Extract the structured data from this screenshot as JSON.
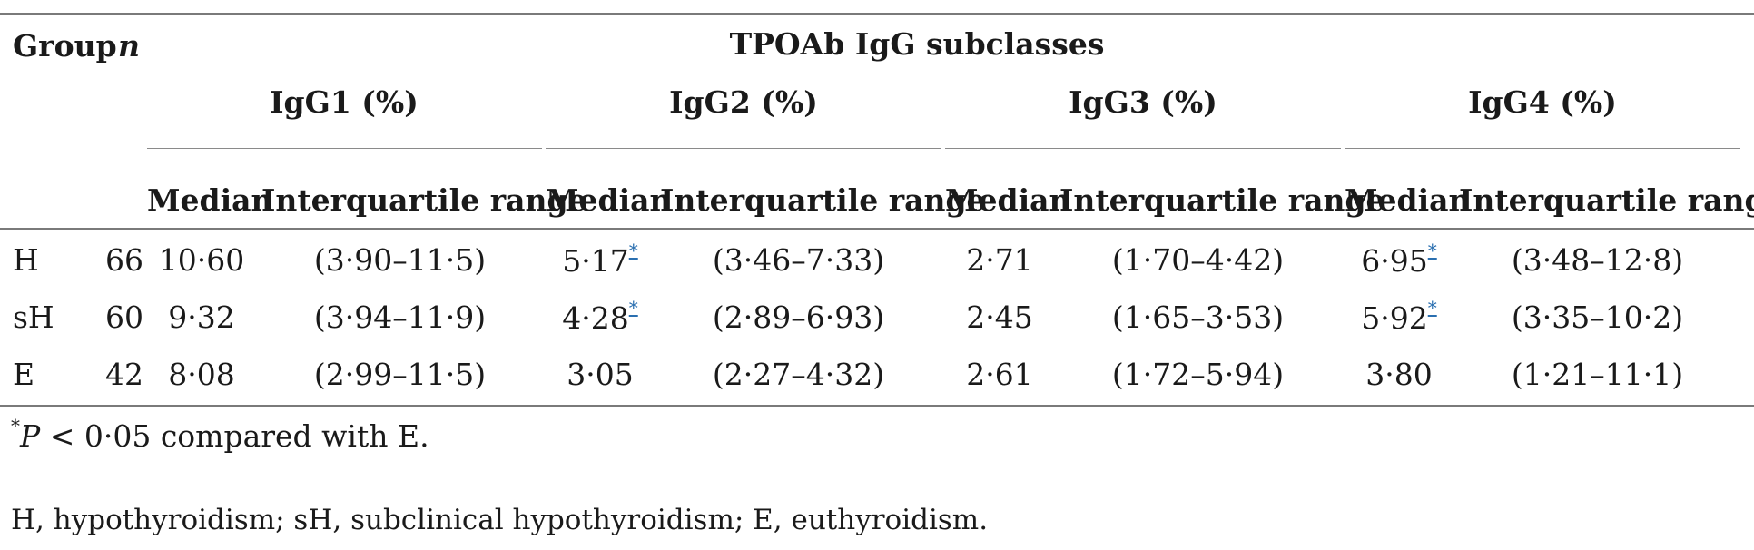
{
  "header": {
    "group": "Group",
    "n": "n",
    "title": "TPOAb IgG subclasses",
    "subclasses": [
      "IgG1 (%)",
      "IgG2 (%)",
      "IgG3 (%)",
      "IgG4 (%)"
    ],
    "median": "Median",
    "iqr": "Interquartile range"
  },
  "rows": [
    {
      "group": "H",
      "n": "66",
      "g1m": "10·60",
      "g1r": "(3·90–11·5)",
      "g2m": "5·17",
      "g2r": "(3·46–7·33)",
      "g3m": "2·71",
      "g3r": "(1·70–4·42)",
      "g4m": "6·95",
      "g4r": "(3·48–12·8)"
    },
    {
      "group": "sH",
      "n": "60",
      "g1m": "9·32",
      "g1r": "(3·94–11·9)",
      "g2m": "4·28",
      "g2r": "(2·89–6·93)",
      "g3m": "2·45",
      "g3r": "(1·65–3·53)",
      "g4m": "5·92",
      "g4r": "(3·35–10·2)"
    },
    {
      "group": "E",
      "n": "42",
      "g1m": "8·08",
      "g1r": "(2·99–11·5)",
      "g2m": "3·05",
      "g2r": "(2·27–4·32)",
      "g3m": "2·61",
      "g3r": "(1·72–5·94)",
      "g4m": "3·80",
      "g4r": "(1·21–11·1)"
    }
  ],
  "footnotes": {
    "star_symbol": "*",
    "star_p": "P",
    "star_text": " < 0·05 compared with E.",
    "abbrev": "H, hypothyroidism; sH, subclinical hypothyroidism; E, euthyroidism."
  }
}
